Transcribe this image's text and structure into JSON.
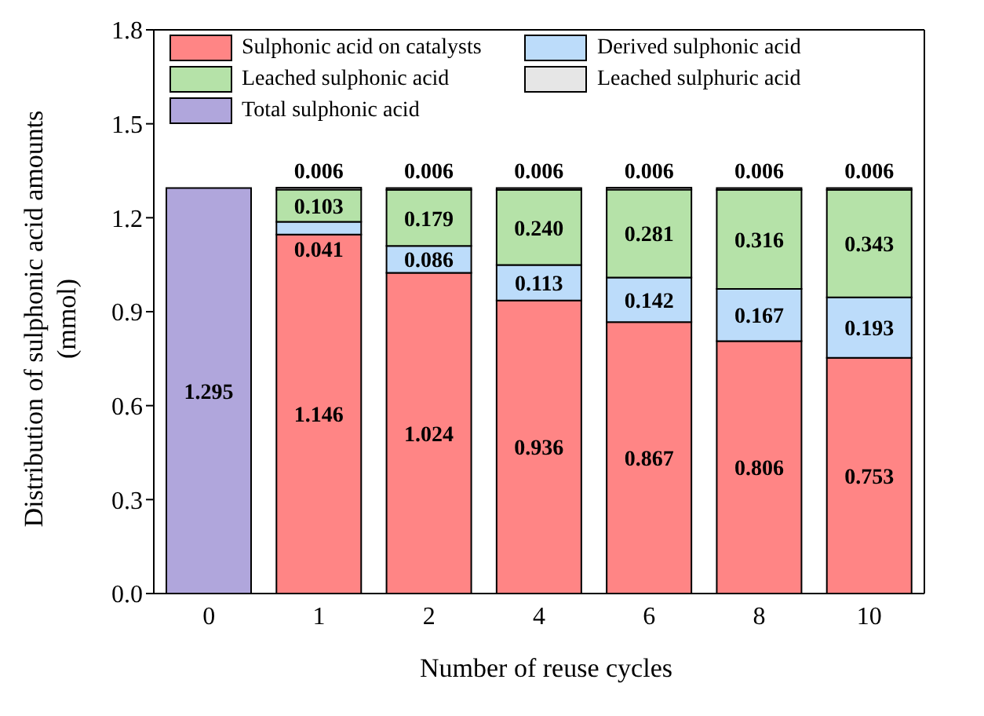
{
  "chart_data": {
    "type": "bar",
    "stacked": true,
    "xlabel": "Number of reuse cycles",
    "ylabel": "Distribution of sulphonic acid amounts (mmol)",
    "categories": [
      "0",
      "1",
      "2",
      "4",
      "6",
      "8",
      "10"
    ],
    "series": [
      {
        "name": "Sulphonic acid on catalysts",
        "color": "#ff8585",
        "values": [
          null,
          1.146,
          1.024,
          0.936,
          0.867,
          0.806,
          0.753
        ],
        "value_labels": [
          null,
          "1.146",
          "1.024",
          "0.936",
          "0.867",
          "0.806",
          "0.753"
        ]
      },
      {
        "name": "Derived sulphonic acid",
        "color": "#bcdcfa",
        "values": [
          null,
          0.041,
          0.086,
          0.113,
          0.142,
          0.167,
          0.193
        ],
        "value_labels": [
          null,
          "0.041",
          "0.086",
          "0.113",
          "0.142",
          "0.167",
          "0.193"
        ]
      },
      {
        "name": "Leached sulphonic acid",
        "color": "#b5e2a8",
        "values": [
          null,
          0.103,
          0.179,
          0.24,
          0.281,
          0.316,
          0.343
        ],
        "value_labels": [
          null,
          "0.103",
          "0.179",
          "0.240",
          "0.281",
          "0.316",
          "0.343"
        ]
      },
      {
        "name": "Leached sulphuric acid",
        "color": "#e6e6e6",
        "values": [
          null,
          0.006,
          0.006,
          0.006,
          0.006,
          0.006,
          0.006
        ],
        "value_labels": [
          null,
          "0.006",
          "0.006",
          "0.006",
          "0.006",
          "0.006",
          "0.006"
        ]
      },
      {
        "name": "Total sulphonic acid",
        "color": "#b0a6dc",
        "values": [
          1.295,
          null,
          null,
          null,
          null,
          null,
          null
        ],
        "value_labels": [
          "1.295",
          null,
          null,
          null,
          null,
          null,
          null
        ]
      }
    ],
    "ylim": [
      0,
      1.8
    ],
    "yticks": [
      {
        "value": 0,
        "label": "0.0"
      },
      {
        "value": 0.3,
        "label": "0.3"
      },
      {
        "value": 0.6,
        "label": "0.6"
      },
      {
        "value": 0.9,
        "label": "0.9"
      },
      {
        "value": 1.2,
        "label": "1.2"
      },
      {
        "value": 1.5,
        "label": "1.5"
      },
      {
        "value": 1.8,
        "label": "1.8"
      }
    ],
    "grid": false,
    "legend": "top"
  }
}
